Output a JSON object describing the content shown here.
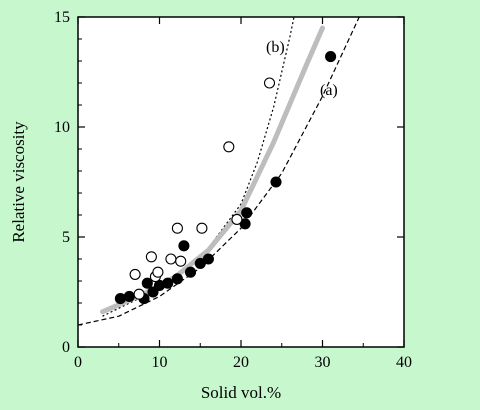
{
  "chart_data": {
    "type": "scatter",
    "xlabel": "Solid vol.%",
    "ylabel": "Relative viscosity",
    "xlim": [
      0,
      40
    ],
    "ylim": [
      0,
      15
    ],
    "xticks": [
      "0",
      "10",
      "20",
      "30",
      "40"
    ],
    "yticks": [
      "0",
      "5",
      "10",
      "15"
    ],
    "grid": false,
    "series": [
      {
        "marker": "filled-circle",
        "points": [
          [
            5.2,
            2.2
          ],
          [
            6.3,
            2.3
          ],
          [
            8.1,
            2.2
          ],
          [
            8.5,
            2.9
          ],
          [
            9.2,
            2.5
          ],
          [
            10.0,
            2.8
          ],
          [
            11.0,
            2.9
          ],
          [
            12.2,
            3.1
          ],
          [
            13.0,
            4.6
          ],
          [
            13.8,
            3.4
          ],
          [
            15.0,
            3.8
          ],
          [
            16.0,
            4.0
          ],
          [
            20.5,
            5.6
          ],
          [
            20.7,
            6.1
          ],
          [
            24.3,
            7.5
          ],
          [
            31.0,
            13.2
          ]
        ]
      },
      {
        "marker": "open-circle",
        "points": [
          [
            7.0,
            3.3
          ],
          [
            7.5,
            2.4
          ],
          [
            9.0,
            4.1
          ],
          [
            9.5,
            3.2
          ],
          [
            9.8,
            3.4
          ],
          [
            11.4,
            4.0
          ],
          [
            12.2,
            5.4
          ],
          [
            12.6,
            3.9
          ],
          [
            15.2,
            5.4
          ],
          [
            18.5,
            9.1
          ],
          [
            19.5,
            5.8
          ],
          [
            23.5,
            12.0
          ]
        ]
      }
    ],
    "curves": [
      {
        "label": "(a)",
        "style": "dashed",
        "points": [
          [
            0,
            1.0
          ],
          [
            5,
            1.4
          ],
          [
            10,
            2.3
          ],
          [
            15,
            3.6
          ],
          [
            20,
            5.4
          ],
          [
            25,
            7.9
          ],
          [
            30,
            11.4
          ],
          [
            32,
            13.0
          ],
          [
            34.5,
            15.0
          ]
        ]
      },
      {
        "label": "(b)",
        "style": "dotted",
        "points": [
          [
            3,
            1.4
          ],
          [
            8,
            2.3
          ],
          [
            12,
            3.2
          ],
          [
            16,
            4.5
          ],
          [
            20,
            6.5
          ],
          [
            22,
            8.4
          ],
          [
            24,
            10.9
          ],
          [
            26,
            14.1
          ],
          [
            26.5,
            15.0
          ]
        ]
      },
      {
        "label": "",
        "style": "thick-gray",
        "points": [
          [
            3,
            1.6
          ],
          [
            8,
            2.4
          ],
          [
            12,
            3.2
          ],
          [
            16,
            4.4
          ],
          [
            20,
            6.2
          ],
          [
            24,
            9.3
          ],
          [
            28,
            12.8
          ],
          [
            30,
            14.5
          ]
        ]
      }
    ],
    "annotations": [
      "(a)",
      "(b)"
    ]
  },
  "colors": {
    "background": "#c6f7cd",
    "plot": "#ffffff",
    "trend": "#bdbdbd",
    "ink": "#000000"
  }
}
